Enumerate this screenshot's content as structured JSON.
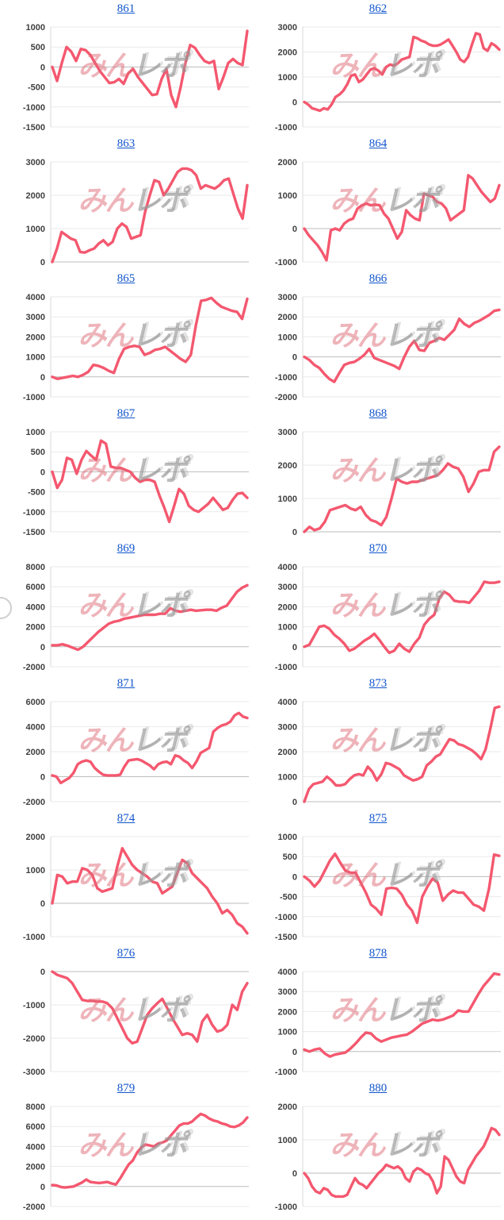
{
  "page": {
    "background": "#ffffff"
  },
  "watermark": {
    "part1": "みん",
    "part2": "レポ"
  },
  "styles": {
    "line_color": "#f4586f",
    "link_color": "#1155cc",
    "grid_color": "#eaeaea",
    "zero_line_color": "#bdbdbd",
    "axis_line_color": "#d8d8d8",
    "label_color": "#3f3f3f"
  },
  "chart_data": [
    {
      "type": "line",
      "title": "861",
      "ylim": [
        -1500,
        1000
      ],
      "yticks": [
        1000,
        500,
        0,
        -500,
        -1000,
        -1500
      ],
      "values": [
        0,
        -350,
        100,
        500,
        380,
        150,
        450,
        420,
        300,
        100,
        -100,
        -250,
        -400,
        -380,
        -300,
        -420,
        -150,
        -50,
        -250,
        -400,
        -550,
        -700,
        -680,
        -300,
        -50,
        -700,
        -1000,
        -500,
        100,
        550,
        480,
        300,
        150,
        100,
        150,
        -550,
        -250,
        100,
        200,
        100,
        50,
        900
      ]
    },
    {
      "type": "line",
      "title": "862",
      "ylim": [
        -1000,
        3000
      ],
      "yticks": [
        3000,
        2000,
        1000,
        0,
        -1000
      ],
      "values": [
        0,
        -100,
        -250,
        -300,
        -350,
        -250,
        -300,
        -100,
        200,
        300,
        450,
        700,
        1050,
        1100,
        800,
        900,
        1100,
        1300,
        1350,
        1250,
        1100,
        1400,
        1500,
        1450,
        1550,
        1700,
        1750,
        1800,
        2600,
        2550,
        2450,
        2400,
        2300,
        2250,
        2250,
        2300,
        2400,
        2500,
        2250,
        2000,
        1700,
        1600,
        1800,
        2300,
        2750,
        2700,
        2150,
        2050,
        2350,
        2250,
        2100
      ]
    },
    {
      "type": "line",
      "title": "863",
      "ylim": [
        0,
        3000
      ],
      "yticks": [
        3000,
        2000,
        1000,
        0
      ],
      "values": [
        0,
        400,
        900,
        800,
        700,
        650,
        300,
        280,
        350,
        400,
        550,
        650,
        500,
        600,
        1000,
        1150,
        1050,
        700,
        750,
        800,
        1500,
        2000,
        2450,
        2400,
        2000,
        2200,
        2450,
        2700,
        2800,
        2800,
        2750,
        2600,
        2200,
        2300,
        2250,
        2200,
        2300,
        2450,
        2500,
        2050,
        1600,
        1300,
        2300
      ]
    },
    {
      "type": "line",
      "title": "864",
      "ylim": [
        -1000,
        2000
      ],
      "yticks": [
        2000,
        1000,
        0,
        -1000
      ],
      "values": [
        0,
        -200,
        -350,
        -500,
        -700,
        -950,
        -50,
        0,
        -50,
        150,
        250,
        300,
        600,
        700,
        750,
        700,
        720,
        700,
        450,
        300,
        0,
        -300,
        -100,
        550,
        400,
        300,
        250,
        1050,
        1000,
        950,
        800,
        750,
        600,
        250,
        350,
        450,
        550,
        1600,
        1500,
        1300,
        1100,
        950,
        800,
        900,
        1300
      ]
    },
    {
      "type": "line",
      "title": "865",
      "ylim": [
        -1000,
        4000
      ],
      "yticks": [
        4000,
        3000,
        2000,
        1000,
        0,
        -1000
      ],
      "values": [
        0,
        -100,
        -50,
        0,
        50,
        0,
        100,
        250,
        600,
        550,
        450,
        300,
        200,
        900,
        1400,
        1500,
        1550,
        1500,
        1100,
        1200,
        1350,
        1400,
        1500,
        1300,
        1100,
        900,
        750,
        1100,
        2600,
        3800,
        3850,
        3950,
        3700,
        3500,
        3400,
        3300,
        3250,
        2900,
        3900
      ]
    },
    {
      "type": "line",
      "title": "866",
      "ylim": [
        -2000,
        3000
      ],
      "yticks": [
        3000,
        2000,
        1000,
        0,
        -1000,
        -2000
      ],
      "values": [
        0,
        -150,
        -400,
        -550,
        -850,
        -1100,
        -1250,
        -800,
        -400,
        -300,
        -250,
        -100,
        100,
        400,
        -50,
        -150,
        -250,
        -350,
        -450,
        -600,
        0,
        500,
        800,
        350,
        300,
        700,
        800,
        950,
        850,
        1100,
        1350,
        1900,
        1650,
        1500,
        1700,
        1800,
        1950,
        2100,
        2300,
        2350
      ]
    },
    {
      "type": "line",
      "title": "867",
      "ylim": [
        -1500,
        1000
      ],
      "yticks": [
        1000,
        500,
        0,
        -500,
        -1000,
        -1500
      ],
      "values": [
        0,
        -400,
        -200,
        350,
        300,
        -50,
        300,
        520,
        400,
        300,
        780,
        700,
        130,
        100,
        100,
        50,
        0,
        -150,
        -250,
        -200,
        -200,
        -250,
        -600,
        -900,
        -1250,
        -850,
        -430,
        -550,
        -850,
        -950,
        -1000,
        -900,
        -800,
        -650,
        -800,
        -950,
        -900,
        -700,
        -550,
        -530,
        -650
      ]
    },
    {
      "type": "line",
      "title": "868",
      "ylim": [
        0,
        3000
      ],
      "yticks": [
        3000,
        2000,
        1000,
        0
      ],
      "values": [
        0,
        150,
        50,
        100,
        300,
        650,
        700,
        750,
        800,
        700,
        650,
        750,
        500,
        350,
        300,
        200,
        450,
        1000,
        1600,
        1500,
        1450,
        1500,
        1500,
        1550,
        1600,
        1650,
        1700,
        1850,
        2050,
        1950,
        1900,
        1650,
        1200,
        1450,
        1800,
        1850,
        1850,
        2400,
        2550
      ]
    },
    {
      "type": "line",
      "title": "869",
      "ylim": [
        -2000,
        8000
      ],
      "yticks": [
        8000,
        6000,
        4000,
        2000,
        0,
        -2000
      ],
      "values": [
        150,
        150,
        250,
        100,
        -100,
        -300,
        0,
        500,
        1000,
        1500,
        1900,
        2300,
        2500,
        2600,
        2800,
        2900,
        3000,
        3100,
        3200,
        3200,
        3200,
        3300,
        3300,
        3850,
        3600,
        3500,
        3600,
        3700,
        3600,
        3650,
        3700,
        3700,
        3600,
        3900,
        4100,
        4800,
        5500,
        5900,
        6150
      ]
    },
    {
      "type": "line",
      "title": "870",
      "ylim": [
        -1000,
        4000
      ],
      "yticks": [
        4000,
        3000,
        2000,
        1000,
        0,
        -1000
      ],
      "values": [
        0,
        100,
        550,
        1000,
        1050,
        900,
        600,
        400,
        150,
        -200,
        -100,
        100,
        300,
        450,
        650,
        350,
        0,
        -300,
        -200,
        150,
        -100,
        -250,
        150,
        450,
        1100,
        1400,
        1600,
        2400,
        2750,
        2600,
        2300,
        2250,
        2250,
        2200,
        2500,
        2800,
        3250,
        3200,
        3200,
        3250
      ]
    },
    {
      "type": "line",
      "title": "871",
      "ylim": [
        -2000,
        6000
      ],
      "yticks": [
        6000,
        4000,
        2000,
        0,
        -2000
      ],
      "values": [
        100,
        0,
        -500,
        -300,
        -100,
        300,
        1000,
        1200,
        1300,
        1200,
        700,
        400,
        150,
        100,
        100,
        100,
        150,
        800,
        1300,
        1350,
        1400,
        1300,
        1100,
        900,
        600,
        1000,
        1150,
        1200,
        1000,
        1700,
        1600,
        1300,
        1100,
        700,
        1200,
        1900,
        2100,
        2300,
        3600,
        3900,
        4100,
        4200,
        4400,
        4900,
        5100,
        4800,
        4700
      ]
    },
    {
      "type": "line",
      "title": "873",
      "ylim": [
        0,
        4000
      ],
      "yticks": [
        4000,
        3000,
        2000,
        1000,
        0
      ],
      "values": [
        0,
        500,
        700,
        750,
        800,
        1000,
        850,
        650,
        650,
        700,
        900,
        1050,
        1100,
        1050,
        1400,
        1200,
        850,
        1100,
        1550,
        1500,
        1400,
        1300,
        1050,
        950,
        850,
        900,
        1000,
        1450,
        1600,
        1800,
        1900,
        2200,
        2500,
        2450,
        2300,
        2250,
        2150,
        2050,
        1900,
        1700,
        2100,
        2900,
        3750,
        3800
      ]
    },
    {
      "type": "line",
      "title": "874",
      "ylim": [
        -1000,
        2000
      ],
      "yticks": [
        2000,
        1000,
        0,
        -1000
      ],
      "values": [
        0,
        850,
        800,
        600,
        650,
        650,
        1050,
        1000,
        850,
        450,
        350,
        400,
        450,
        1100,
        1650,
        1400,
        1150,
        1000,
        900,
        800,
        650,
        600,
        300,
        400,
        500,
        900,
        1300,
        1200,
        900,
        750,
        600,
        450,
        200,
        0,
        -300,
        -200,
        -350,
        -600,
        -700,
        -900
      ]
    },
    {
      "type": "line",
      "title": "875",
      "ylim": [
        -1500,
        1000
      ],
      "yticks": [
        1000,
        500,
        0,
        -500,
        -1000,
        -1500
      ],
      "values": [
        0,
        -100,
        -250,
        -100,
        150,
        400,
        570,
        350,
        150,
        100,
        100,
        -150,
        -400,
        -700,
        -800,
        -950,
        -300,
        -280,
        -300,
        -450,
        -700,
        -850,
        -1150,
        -500,
        -250,
        -50,
        -150,
        -600,
        -450,
        -350,
        -400,
        -400,
        -550,
        -700,
        -750,
        -850,
        -300,
        550,
        520
      ]
    },
    {
      "type": "line",
      "title": "876",
      "ylim": [
        -3000,
        0
      ],
      "yticks": [
        0,
        -1000,
        -2000,
        -3000
      ],
      "values": [
        0,
        -100,
        -150,
        -200,
        -350,
        -600,
        -850,
        -880,
        -880,
        -900,
        -900,
        -950,
        -1100,
        -1400,
        -1700,
        -2000,
        -2150,
        -2100,
        -1700,
        -1300,
        -1100,
        -950,
        -820,
        -1100,
        -1400,
        -1650,
        -1900,
        -1850,
        -1900,
        -2100,
        -1500,
        -1300,
        -1600,
        -1800,
        -1750,
        -1600,
        -1000,
        -1150,
        -600,
        -350
      ]
    },
    {
      "type": "line",
      "title": "878",
      "ylim": [
        -1000,
        4000
      ],
      "yticks": [
        4000,
        3000,
        2000,
        1000,
        0,
        -1000
      ],
      "values": [
        100,
        0,
        100,
        150,
        -100,
        -250,
        -150,
        -100,
        -50,
        150,
        400,
        700,
        950,
        900,
        650,
        500,
        600,
        700,
        750,
        800,
        850,
        1000,
        1200,
        1400,
        1500,
        1600,
        1550,
        1600,
        1700,
        1800,
        2050,
        2000,
        2000,
        2450,
        2900,
        3300,
        3600,
        3900,
        3850
      ]
    },
    {
      "type": "line",
      "title": "879",
      "ylim": [
        -2000,
        8000
      ],
      "yticks": [
        8000,
        6000,
        4000,
        2000,
        0,
        -2000
      ],
      "values": [
        150,
        100,
        -50,
        -100,
        -50,
        0,
        200,
        400,
        700,
        450,
        400,
        350,
        400,
        450,
        300,
        200,
        800,
        1500,
        2200,
        2600,
        3400,
        3900,
        4200,
        4100,
        4000,
        4300,
        4400,
        4600,
        5100,
        5600,
        6100,
        6300,
        6300,
        6500,
        6900,
        7250,
        7100,
        6800,
        6600,
        6500,
        6300,
        6200,
        6000,
        5950,
        6100,
        6400,
        6900
      ]
    },
    {
      "type": "line",
      "title": "880",
      "ylim": [
        -1000,
        2000
      ],
      "yticks": [
        2000,
        1000,
        0,
        -1000
      ],
      "values": [
        0,
        -150,
        -400,
        -550,
        -600,
        -450,
        -500,
        -650,
        -700,
        -700,
        -700,
        -650,
        -400,
        -150,
        -300,
        -350,
        -450,
        -300,
        -150,
        0,
        100,
        250,
        200,
        150,
        200,
        100,
        -150,
        -250,
        50,
        150,
        100,
        0,
        -50,
        -250,
        -600,
        -400,
        500,
        400,
        150,
        -100,
        -250,
        -300,
        100,
        300,
        500,
        650,
        800,
        1050,
        1350,
        1300,
        1150
      ]
    }
  ]
}
